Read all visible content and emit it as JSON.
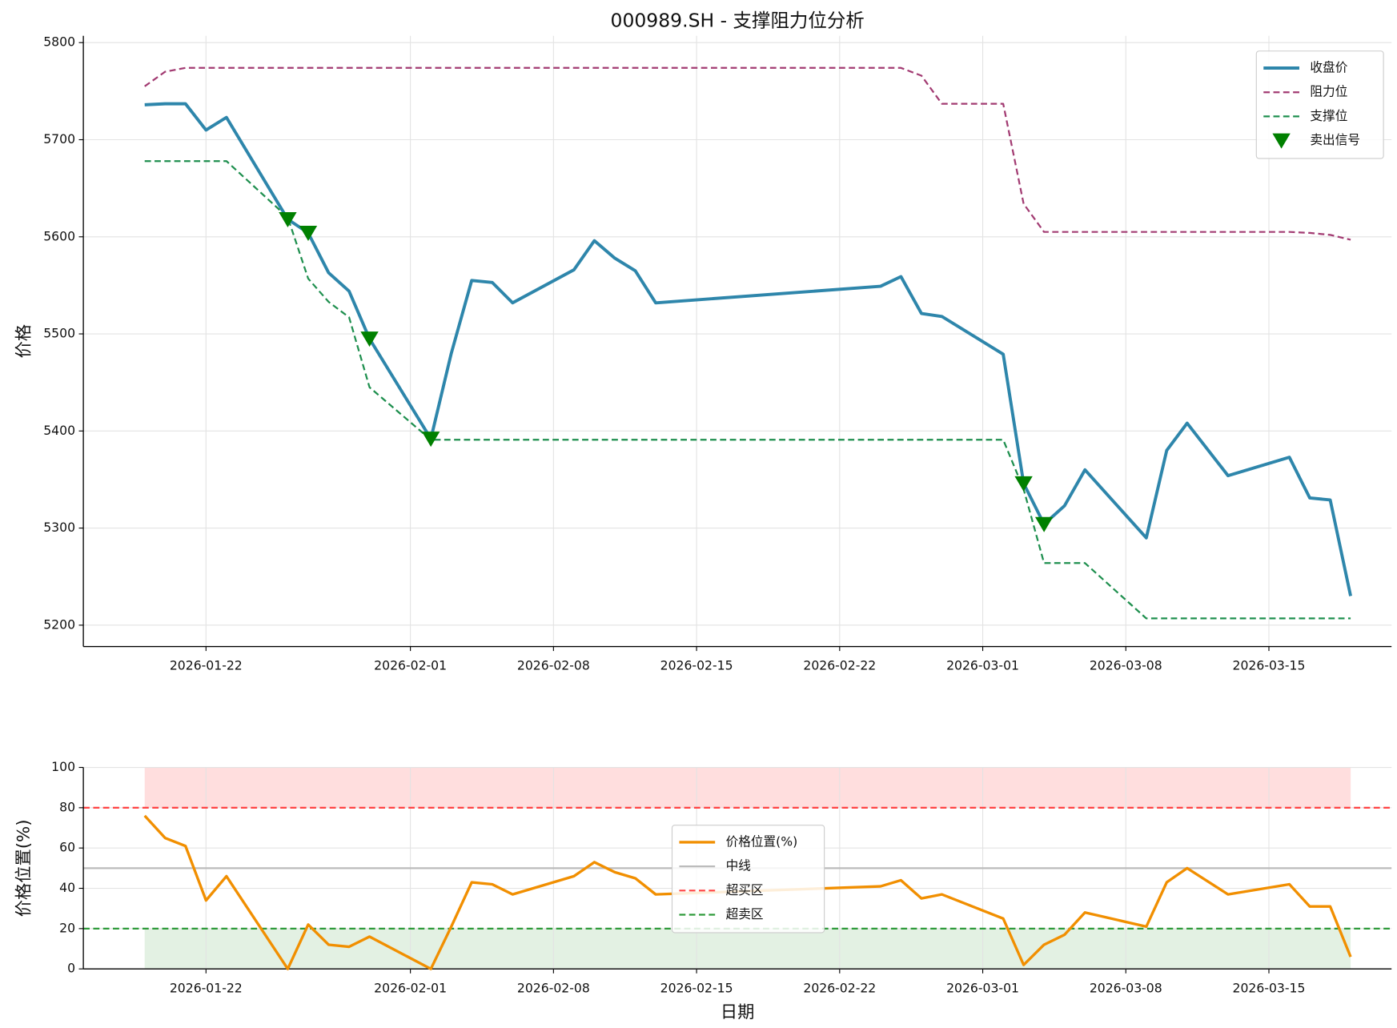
{
  "chart_data": [
    {
      "type": "line",
      "title": "000989.SH - 支撑阻力位分析",
      "ylabel": "价格",
      "x": [
        "2026-01-19",
        "2026-01-20",
        "2026-01-21",
        "2026-01-22",
        "2026-01-23",
        "2026-01-26",
        "2026-01-27",
        "2026-01-28",
        "2026-01-29",
        "2026-01-30",
        "2026-02-02",
        "2026-02-03",
        "2026-02-04",
        "2026-02-05",
        "2026-02-06",
        "2026-02-09",
        "2026-02-10",
        "2026-02-11",
        "2026-02-12",
        "2026-02-13",
        "2026-02-24",
        "2026-02-25",
        "2026-02-26",
        "2026-02-27",
        "2026-03-02",
        "2026-03-03",
        "2026-03-04",
        "2026-03-05",
        "2026-03-06",
        "2026-03-09",
        "2026-03-10",
        "2026-03-11",
        "2026-03-13",
        "2026-03-16",
        "2026-03-17",
        "2026-03-18",
        "2026-03-19"
      ],
      "series": [
        {
          "name": "收盘价",
          "color": "#2e86ab",
          "linestyle": "solid",
          "width": 3.5,
          "values": [
            5736,
            5737,
            5737,
            5710,
            5723,
            5618,
            5604,
            5563,
            5544,
            5495,
            5392,
            5480,
            5555,
            5553,
            5532,
            5566,
            5596,
            5578,
            5565,
            5532,
            5549,
            5559,
            5521,
            5518,
            5479,
            5346,
            5304,
            5323,
            5360,
            5290,
            5380,
            5408,
            5354,
            5373,
            5331,
            5329,
            5230
          ]
        },
        {
          "name": "阻力位",
          "color": "#a23b72",
          "linestyle": "dashed",
          "width": 2,
          "values": [
            5755,
            5770,
            5774,
            5774,
            5774,
            5774,
            5774,
            5774,
            5774,
            5774,
            5774,
            5774,
            5774,
            5774,
            5774,
            5774,
            5774,
            5774,
            5774,
            5774,
            5774,
            5774,
            5766,
            5737,
            5737,
            5634,
            5605,
            5605,
            5605,
            5605,
            5605,
            5605,
            5605,
            5605,
            5604,
            5602,
            5597
          ]
        },
        {
          "name": "支撑位",
          "color": "#1e8f4e",
          "linestyle": "dashed",
          "width": 2,
          "values": [
            5678,
            5678,
            5678,
            5678,
            5678,
            5620,
            5557,
            5533,
            5517,
            5445,
            5391,
            5391,
            5391,
            5391,
            5391,
            5391,
            5391,
            5391,
            5391,
            5391,
            5391,
            5391,
            5391,
            5391,
            5391,
            5340,
            5264,
            5264,
            5264,
            5207,
            5207,
            5207,
            5207,
            5207,
            5207,
            5207,
            5207
          ]
        },
        {
          "name": "卖出信号",
          "color": "#008000",
          "linestyle": "marker",
          "values": [
            null,
            null,
            null,
            null,
            null,
            5618,
            5604,
            null,
            null,
            5495,
            5392,
            null,
            null,
            null,
            null,
            null,
            null,
            null,
            null,
            null,
            null,
            null,
            null,
            null,
            null,
            5346,
            5304,
            null,
            null,
            null,
            null,
            null,
            null,
            null,
            null,
            null,
            null
          ]
        }
      ],
      "xlim": [
        "2026-01-16",
        "2026-03-21"
      ],
      "xticks": [
        "2026-01-22",
        "2026-02-01",
        "2026-02-08",
        "2026-02-15",
        "2026-02-22",
        "2026-03-01",
        "2026-03-08",
        "2026-03-15"
      ],
      "ylim": [
        5178,
        5807
      ],
      "yticks": [
        5200,
        5300,
        5400,
        5500,
        5600,
        5700,
        5800
      ],
      "grid": true,
      "legend": "upper right"
    },
    {
      "type": "line",
      "ylabel": "价格位置(%)",
      "xlabel": "日期",
      "x": [
        "2026-01-19",
        "2026-01-20",
        "2026-01-21",
        "2026-01-22",
        "2026-01-23",
        "2026-01-26",
        "2026-01-27",
        "2026-01-28",
        "2026-01-29",
        "2026-01-30",
        "2026-02-02",
        "2026-02-03",
        "2026-02-04",
        "2026-02-05",
        "2026-02-06",
        "2026-02-09",
        "2026-02-10",
        "2026-02-11",
        "2026-02-12",
        "2026-02-13",
        "2026-02-24",
        "2026-02-25",
        "2026-02-26",
        "2026-02-27",
        "2026-03-02",
        "2026-03-03",
        "2026-03-04",
        "2026-03-05",
        "2026-03-06",
        "2026-03-09",
        "2026-03-10",
        "2026-03-11",
        "2026-03-13",
        "2026-03-16",
        "2026-03-17",
        "2026-03-18",
        "2026-03-19"
      ],
      "series": [
        {
          "name": "价格位置(%)",
          "color": "#f18f01",
          "linestyle": "solid",
          "width": 3,
          "values": [
            76,
            65,
            61,
            34,
            46,
            0,
            22,
            12,
            11,
            16,
            0,
            21,
            43,
            42,
            37,
            46,
            53,
            48,
            45,
            37,
            41,
            44,
            35,
            37,
            25,
            2,
            12,
            17,
            28,
            21,
            43,
            50,
            37,
            42,
            31,
            31,
            6
          ]
        }
      ],
      "hlines": [
        {
          "name": "中线",
          "value": 50,
          "color": "#bbbbbb",
          "linestyle": "solid"
        },
        {
          "name": "超买区",
          "value": 80,
          "color": "#ff4444",
          "linestyle": "dashed",
          "zone": "above",
          "zone_color": "#ffdede"
        },
        {
          "name": "超卖区",
          "value": 20,
          "color": "#2e9a3a",
          "linestyle": "dashed",
          "zone": "below",
          "zone_color": "#e3f1e3"
        }
      ],
      "xlim": [
        "2026-01-16",
        "2026-03-21"
      ],
      "xticks": [
        "2026-01-22",
        "2026-02-01",
        "2026-02-08",
        "2026-02-15",
        "2026-02-22",
        "2026-03-01",
        "2026-03-08",
        "2026-03-15"
      ],
      "ylim": [
        0,
        100
      ],
      "yticks": [
        0,
        20,
        40,
        60,
        80,
        100
      ],
      "grid": true,
      "legend": "center"
    }
  ]
}
